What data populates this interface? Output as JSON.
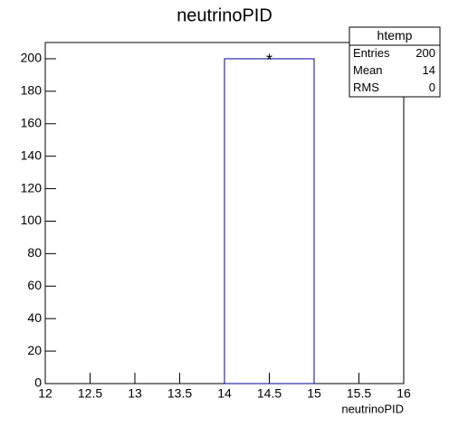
{
  "chart_data": {
    "type": "histogram",
    "title": "neutrinoPID",
    "x_label": "neutrinoPID",
    "bins": [
      12,
      13,
      14,
      15,
      16
    ],
    "counts": [
      0,
      0,
      200,
      0
    ],
    "color": "#000099",
    "marker": "*",
    "xlim": [
      12,
      16
    ],
    "xticks": [
      12,
      12.5,
      13,
      13.5,
      14,
      14.5,
      15,
      15.5,
      16
    ],
    "ylim": [
      0,
      210
    ],
    "yticks": [
      0,
      20,
      40,
      60,
      80,
      100,
      120,
      140,
      160,
      180,
      200
    ],
    "stats": {
      "title": "htemp",
      "rows": [
        {
          "label": "Entries",
          "value": "200"
        },
        {
          "label": "Mean",
          "value": "14"
        },
        {
          "label": "RMS",
          "value": "0"
        }
      ]
    }
  }
}
